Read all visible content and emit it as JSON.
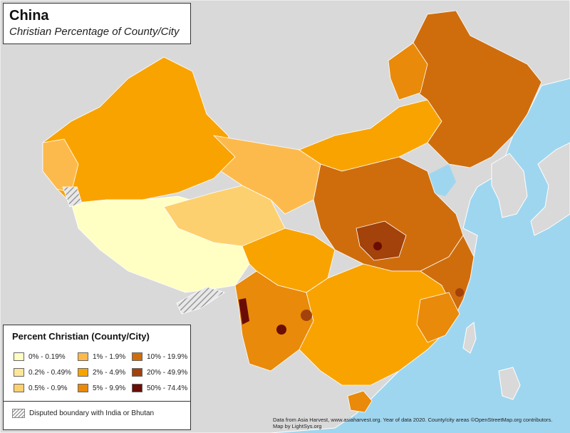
{
  "title": "China",
  "subtitle": "Christian Percentage of County/City",
  "legend": {
    "title": "Percent Christian (County/City)",
    "items": [
      {
        "label": "0% - 0.19%",
        "color": "#ffffc4"
      },
      {
        "label": "0.2% - 0.49%",
        "color": "#ffe697"
      },
      {
        "label": "0.5% - 0.9%",
        "color": "#fdd06f"
      },
      {
        "label": "1% - 1.9%",
        "color": "#fdba4c"
      },
      {
        "label": "2% - 4.9%",
        "color": "#f9a300"
      },
      {
        "label": "5% - 9.9%",
        "color": "#e98a0a"
      },
      {
        "label": "10% - 19.9%",
        "color": "#cf6d0d"
      },
      {
        "label": "20% - 49.9%",
        "color": "#a3420a"
      },
      {
        "label": "50% - 74.4%",
        "color": "#6a0d05"
      }
    ],
    "disputed": "Disputed boundary with India or Bhutan"
  },
  "credits": {
    "line1": "Data from Asia Harvest, www.asiaharvest.org. Year of data 2020. County/city areas ©OpenStreetMap.org contributors.",
    "line2": "Map by LightSys.org"
  },
  "colors": {
    "water": "#9fd6ef",
    "land": "#d9d9d9",
    "border": "#ffffff"
  }
}
